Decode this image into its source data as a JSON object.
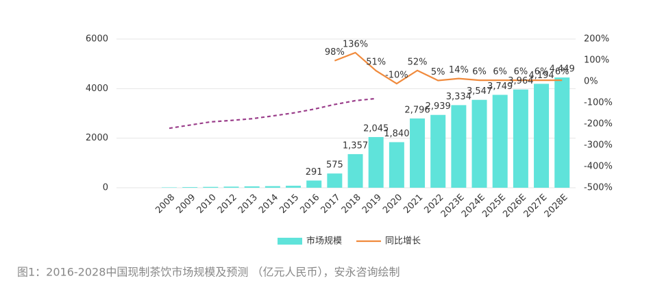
{
  "chart_data": {
    "type": "bar",
    "categories": [
      "2008",
      "2009",
      "2010",
      "2012",
      "2013",
      "2014",
      "2015",
      "2016",
      "2017",
      "2018",
      "2019",
      "2020",
      "2021",
      "2022",
      "2023E",
      "2024E",
      "2025E",
      "2026E",
      "2027E",
      "2028E"
    ],
    "series": [
      {
        "name": "市场规模",
        "type": "bar",
        "color": "#5fe3da",
        "values": [
          15,
          25,
          35,
          45,
          55,
          65,
          80,
          291,
          575,
          1357,
          2045,
          1840,
          2796,
          2939,
          3334,
          3547,
          3749,
          3964,
          4194,
          4449
        ],
        "value_labels": [
          null,
          null,
          null,
          null,
          null,
          null,
          null,
          "291",
          "575",
          "1,357",
          "2,045",
          "1,840",
          "2,796",
          "2,939",
          "3,334",
          "3,547",
          "3,749",
          "3,964",
          "4,194",
          "4,449"
        ]
      },
      {
        "name": "同比增长",
        "type": "line",
        "axis": "y2",
        "color": "#f08a3c",
        "values": [
          null,
          null,
          null,
          null,
          null,
          null,
          null,
          null,
          98,
          136,
          51,
          -10,
          52,
          5,
          14,
          6,
          6,
          6,
          6,
          6
        ],
        "value_labels": [
          null,
          null,
          null,
          null,
          null,
          null,
          null,
          null,
          "98%",
          "136%",
          "51%",
          "-10%",
          "52%",
          "5%",
          "14%",
          "6%",
          "6%",
          "6%",
          "6%",
          "6%"
        ]
      },
      {
        "type": "line",
        "axis": "y2",
        "color": "#9a3d8a",
        "dashed": true,
        "values": [
          -220,
          -205,
          -190,
          -183,
          -175,
          -162,
          -148,
          -130,
          -108,
          -90,
          -80,
          null,
          null,
          null,
          null,
          null,
          null,
          null,
          null,
          null
        ]
      }
    ],
    "ylim": [
      0,
      6000
    ],
    "yticks": [
      0,
      2000,
      4000,
      6000
    ],
    "y2lim": [
      -500,
      200
    ],
    "y2ticks": [
      {
        "value": -500,
        "label": "-500%"
      },
      {
        "value": -400,
        "label": "-400%"
      },
      {
        "value": -300,
        "label": "-300%"
      },
      {
        "value": -200,
        "label": "-200%"
      },
      {
        "value": -100,
        "label": "-100%"
      },
      {
        "value": 0,
        "label": "0%"
      },
      {
        "value": 100,
        "label": "100%"
      },
      {
        "value": 200,
        "label": "200%"
      }
    ],
    "grid": true,
    "legend": "bottom",
    "caption": "图1：2016-2028中国现制茶饮市场规模及预测 （亿元人民币），安永咨询绘制"
  }
}
